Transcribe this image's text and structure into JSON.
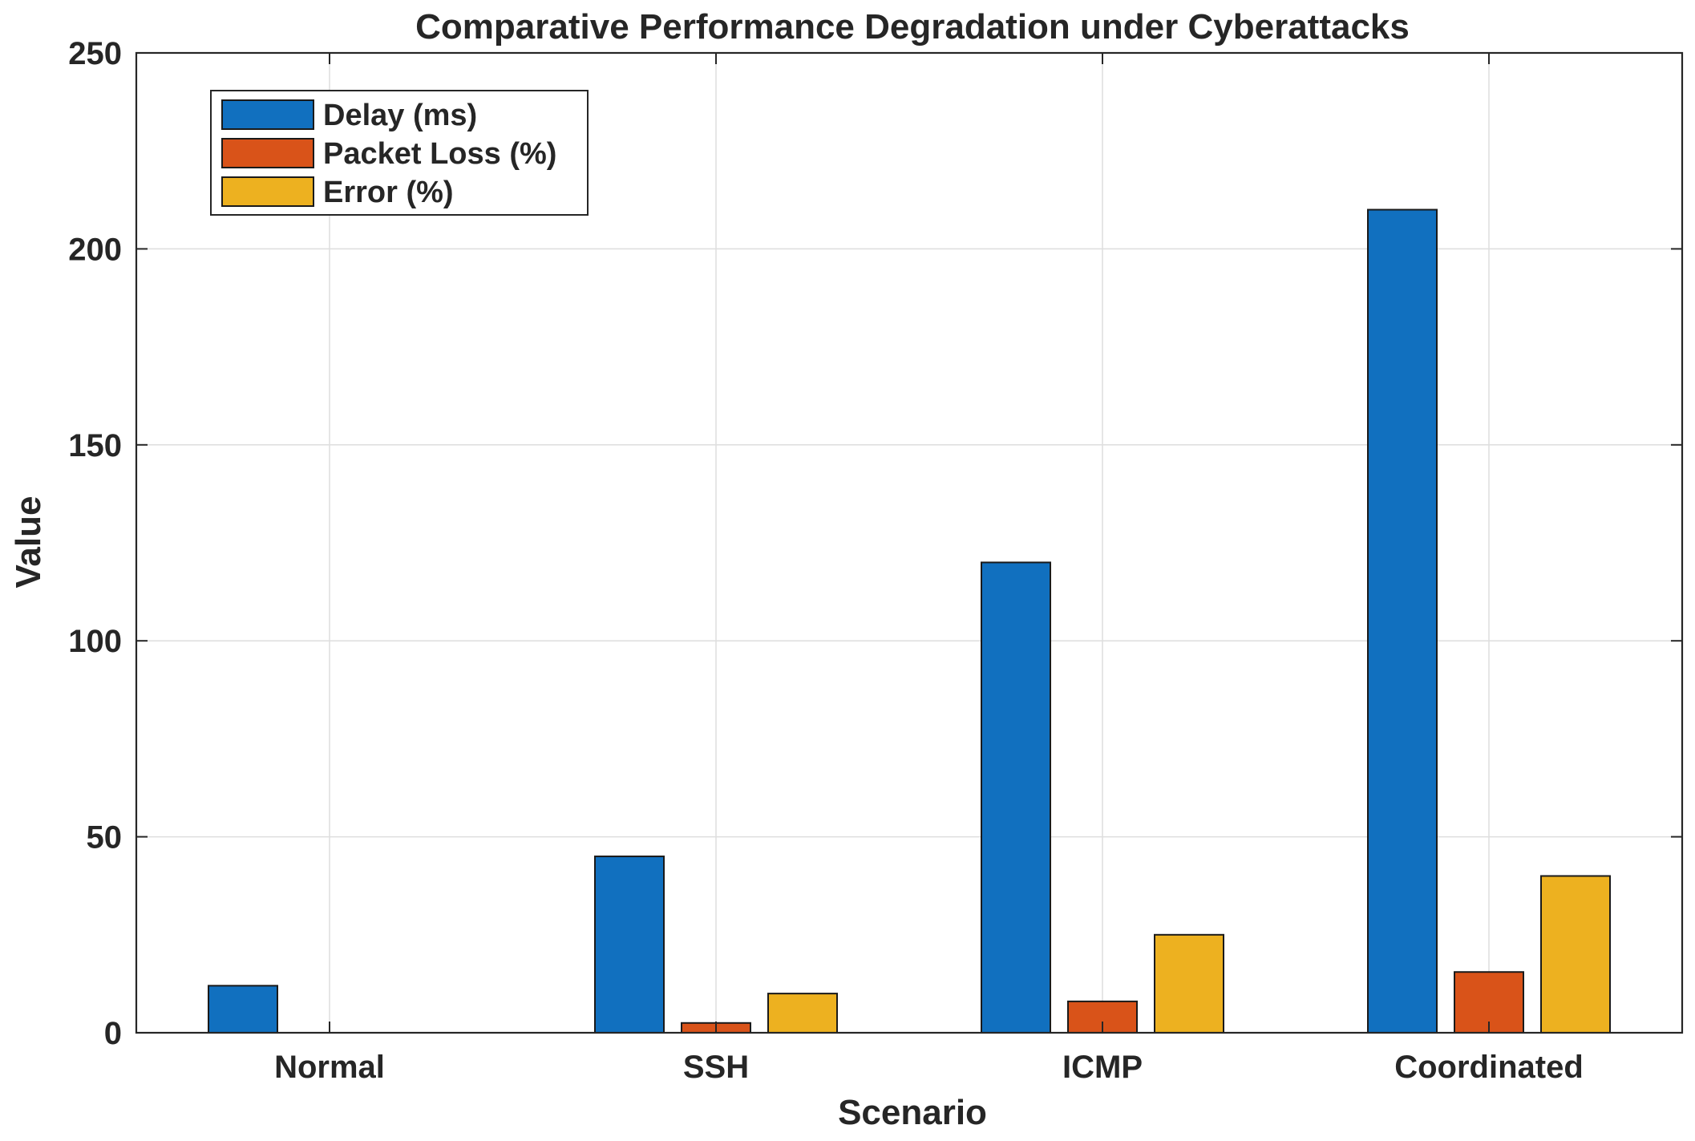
{
  "chart_data": {
    "type": "bar",
    "title": "Comparative Performance Degradation under Cyberattacks",
    "xlabel": "Scenario",
    "ylabel": "Value",
    "categories": [
      "Normal",
      "SSH",
      "ICMP",
      "Coordinated"
    ],
    "series": [
      {
        "name": "Delay (ms)",
        "values": [
          12,
          45,
          120,
          210
        ],
        "color": "#1170BF"
      },
      {
        "name": "Packet Loss (%)",
        "values": [
          0,
          2.5,
          8,
          15.5
        ],
        "color": "#D95319"
      },
      {
        "name": "Error (%)",
        "values": [
          0,
          10,
          25,
          40
        ],
        "color": "#EDB120"
      }
    ],
    "ylim": [
      0,
      250
    ],
    "yticks": [
      "0",
      "50",
      "100",
      "150",
      "200",
      "250"
    ],
    "grid": true,
    "legend_position": "top-left"
  }
}
